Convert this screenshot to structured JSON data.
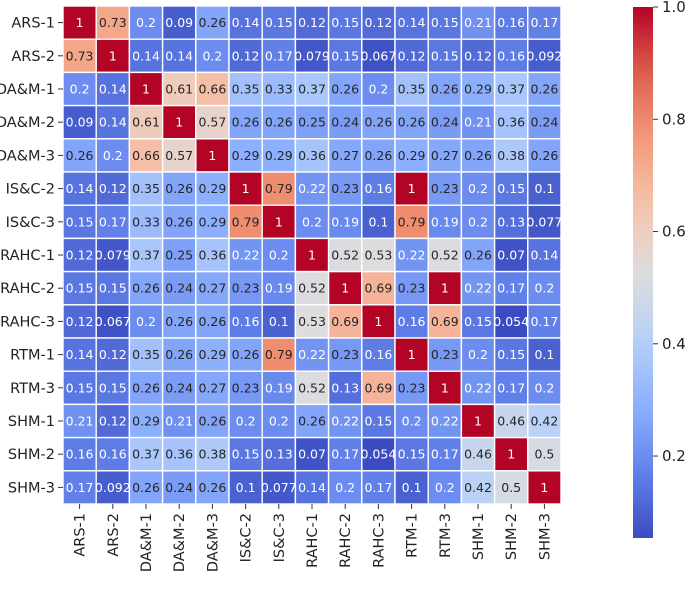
{
  "chart_data": {
    "type": "heatmap",
    "title": "",
    "xlabel": "",
    "ylabel": "",
    "labels": [
      "ARS-1",
      "ARS-2",
      "DA&M-1",
      "DA&M-2",
      "DA&M-3",
      "IS&C-2",
      "IS&C-3",
      "RAHC-1",
      "RAHC-2",
      "RAHC-3",
      "RTM-1",
      "RTM-3",
      "SHM-1",
      "SHM-2",
      "SHM-3"
    ],
    "matrix": [
      [
        1,
        0.73,
        0.2,
        0.09,
        0.26,
        0.14,
        0.15,
        0.12,
        0.15,
        0.12,
        0.14,
        0.15,
        0.21,
        0.16,
        0.17
      ],
      [
        0.73,
        1,
        0.14,
        0.14,
        0.2,
        0.12,
        0.17,
        0.079,
        0.15,
        0.067,
        0.12,
        0.15,
        0.12,
        0.16,
        0.092
      ],
      [
        0.2,
        0.14,
        1,
        0.61,
        0.66,
        0.35,
        0.33,
        0.37,
        0.26,
        0.2,
        0.35,
        0.26,
        0.29,
        0.37,
        0.26
      ],
      [
        0.09,
        0.14,
        0.61,
        1,
        0.57,
        0.26,
        0.26,
        0.25,
        0.24,
        0.26,
        0.26,
        0.24,
        0.21,
        0.36,
        0.24
      ],
      [
        0.26,
        0.2,
        0.66,
        0.57,
        1,
        0.29,
        0.29,
        0.36,
        0.27,
        0.26,
        0.29,
        0.27,
        0.26,
        0.38,
        0.26
      ],
      [
        0.14,
        0.12,
        0.35,
        0.26,
        0.29,
        1,
        0.79,
        0.22,
        0.23,
        0.16,
        1,
        0.23,
        0.2,
        0.15,
        0.1
      ],
      [
        0.15,
        0.17,
        0.33,
        0.26,
        0.29,
        0.79,
        1,
        0.2,
        0.19,
        0.1,
        0.79,
        0.19,
        0.2,
        0.13,
        0.077
      ],
      [
        0.12,
        0.079,
        0.37,
        0.25,
        0.36,
        0.22,
        0.2,
        1,
        0.52,
        0.53,
        0.22,
        0.52,
        0.26,
        0.07,
        0.14
      ],
      [
        0.15,
        0.15,
        0.26,
        0.24,
        0.27,
        0.23,
        0.19,
        0.52,
        1,
        0.69,
        0.23,
        1,
        0.22,
        0.17,
        0.2
      ],
      [
        0.12,
        0.067,
        0.2,
        0.26,
        0.26,
        0.16,
        0.1,
        0.53,
        0.69,
        1,
        0.16,
        0.69,
        0.15,
        0.054,
        0.17
      ],
      [
        0.14,
        0.12,
        0.35,
        0.26,
        0.29,
        0.26,
        0.79,
        0.22,
        0.23,
        0.16,
        1,
        0.23,
        0.2,
        0.15,
        0.1
      ],
      [
        0.15,
        0.15,
        0.26,
        0.24,
        0.27,
        0.23,
        0.19,
        0.52,
        0.13,
        0.69,
        0.23,
        1,
        0.22,
        0.17,
        0.2
      ],
      [
        0.21,
        0.12,
        0.29,
        0.21,
        0.26,
        0.2,
        0.2,
        0.26,
        0.22,
        0.15,
        0.2,
        0.22,
        1,
        0.46,
        0.42
      ],
      [
        0.16,
        0.16,
        0.37,
        0.36,
        0.38,
        0.15,
        0.13,
        0.07,
        0.17,
        0.054,
        0.15,
        0.17,
        0.46,
        1,
        0.5
      ],
      [
        0.17,
        0.092,
        0.26,
        0.24,
        0.26,
        0.1,
        0.077,
        0.14,
        0.2,
        0.17,
        0.1,
        0.2,
        0.42,
        0.5,
        1
      ]
    ],
    "colormap": "coolwarm",
    "vmin": 0.054,
    "vmax": 1.0,
    "colorbar_ticks": [
      "0.2",
      "0.4",
      "0.6",
      "0.8",
      "1.0"
    ],
    "colorbar_tick_values": [
      0.2,
      0.4,
      0.6,
      0.8,
      1.0
    ],
    "annotated": true,
    "grid_lines": "white"
  }
}
